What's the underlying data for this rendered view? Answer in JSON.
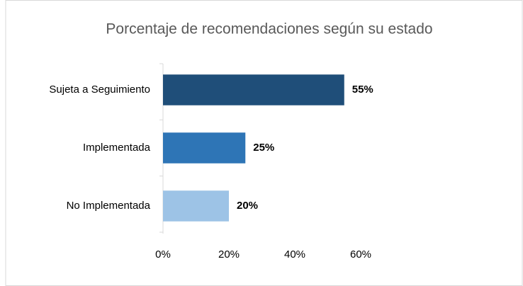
{
  "chart_data": {
    "type": "hbar",
    "title": "Porcentaje de recomendaciones según su estado",
    "categories": [
      "Sujeta a Seguimiento",
      "Implementada",
      "No Implementada"
    ],
    "values": [
      55,
      25,
      20
    ],
    "value_labels": [
      "55%",
      "25%",
      "20%"
    ],
    "colors": [
      "#1f4e79",
      "#2e75b6",
      "#9dc3e6"
    ],
    "xlim": [
      0,
      60
    ],
    "xticks": [
      {
        "value": 0,
        "label": "0%"
      },
      {
        "value": 20,
        "label": "20%"
      },
      {
        "value": 40,
        "label": "40%"
      },
      {
        "value": 60,
        "label": "60%"
      }
    ],
    "grid": false
  }
}
